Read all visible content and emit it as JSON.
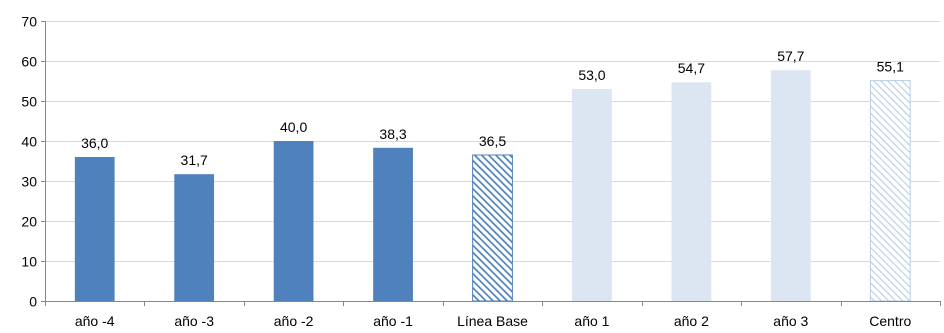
{
  "chart_data": {
    "type": "bar",
    "categories": [
      "año -4",
      "año -3",
      "año -2",
      "año -1",
      "Línea Base",
      "año 1",
      "año 2",
      "año 3",
      "Centro"
    ],
    "values": [
      36.0,
      31.7,
      40.0,
      38.3,
      36.5,
      53.0,
      54.7,
      57.7,
      55.1
    ],
    "data_labels": [
      "36,0",
      "31,7",
      "40,0",
      "38,3",
      "36,5",
      "53,0",
      "54,7",
      "57,7",
      "55,1"
    ],
    "bar_styles": [
      "solid-dark",
      "solid-dark",
      "solid-dark",
      "solid-dark",
      "hatched-dark",
      "solid-light",
      "solid-light",
      "solid-light",
      "hatched-light"
    ],
    "yticks": [
      "0",
      "10",
      "20",
      "30",
      "40",
      "50",
      "60",
      "70"
    ],
    "ylim": [
      0,
      70
    ],
    "grid": true,
    "legend": "none",
    "colors": {
      "dark": "#4f81bd",
      "light": "#dce6f2",
      "light_hatch": "#b9cde5",
      "grid": "#d9d9d9",
      "axis": "#868686"
    }
  }
}
